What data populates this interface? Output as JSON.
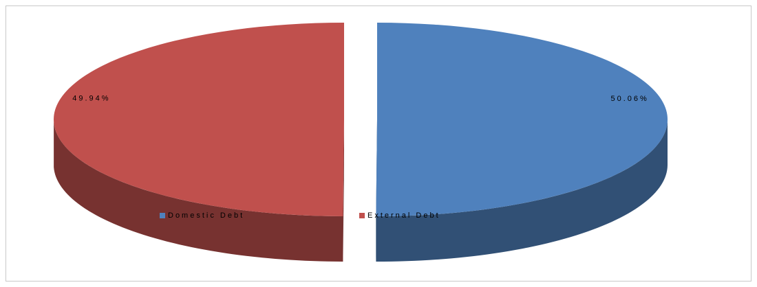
{
  "chart_data": {
    "type": "pie",
    "categories": [
      "Domestic Debt",
      "External Debt"
    ],
    "values": [
      50.06,
      49.94
    ],
    "value_labels": [
      "50.06%",
      "49.94%"
    ],
    "colors": [
      "#4f81bd",
      "#c0504d"
    ],
    "legend": "bottom"
  }
}
